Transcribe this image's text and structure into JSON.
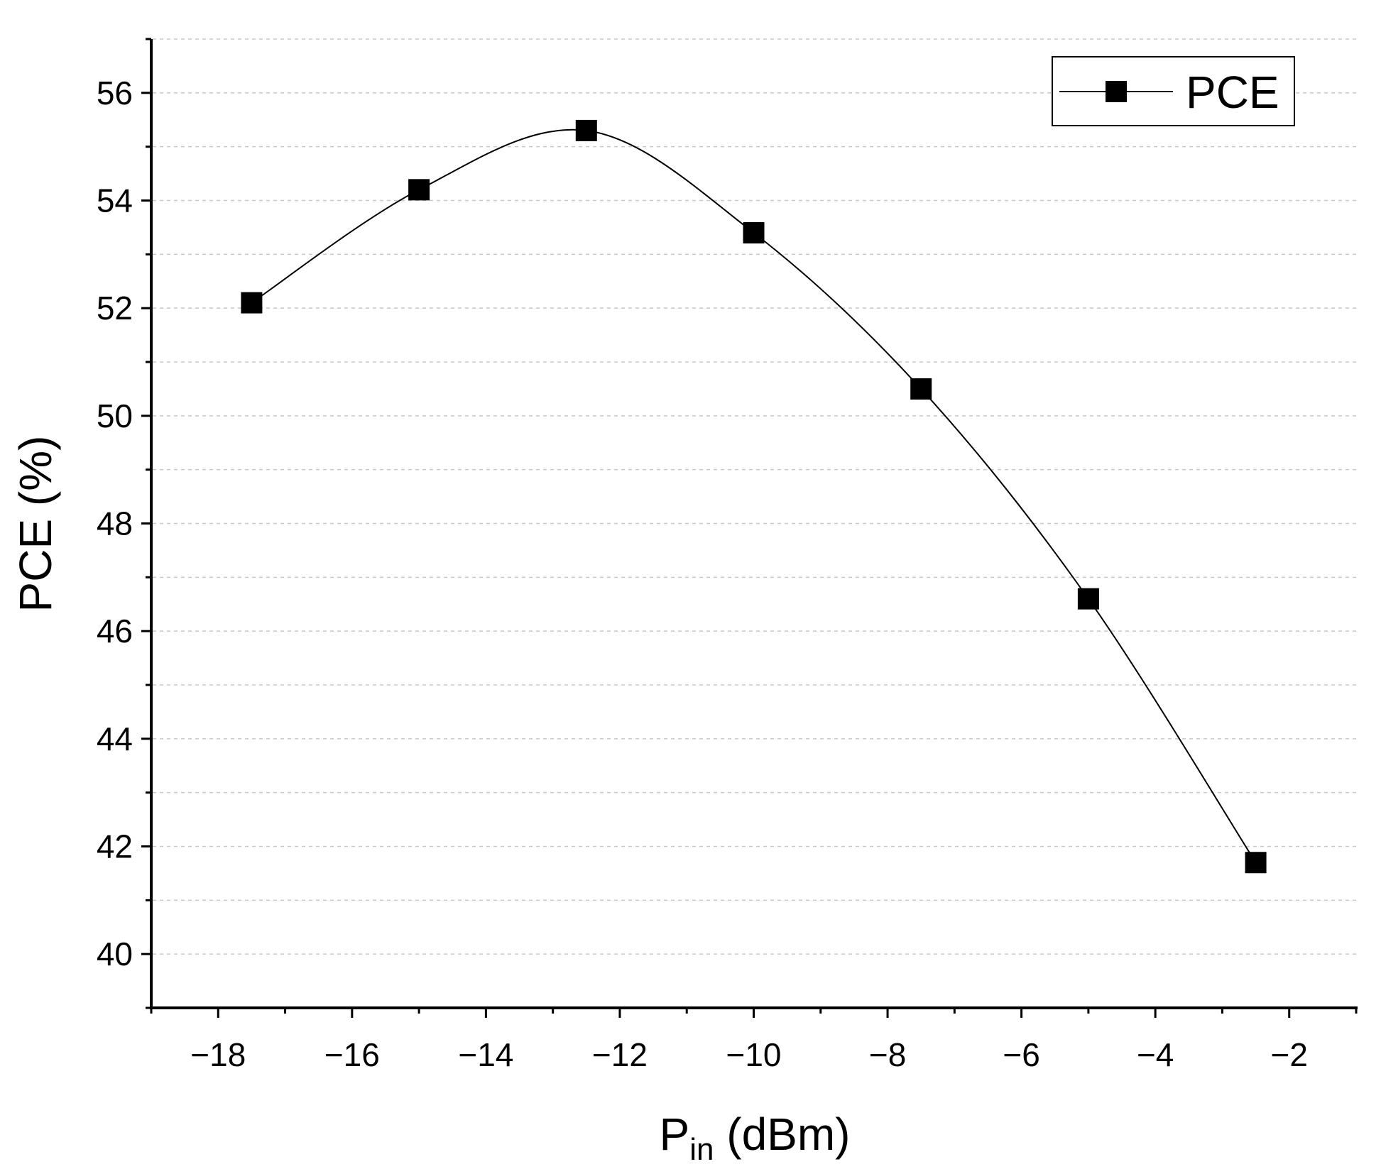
{
  "chart_data": {
    "type": "line",
    "title": "",
    "xlabel": {
      "main": "P",
      "sub": "in",
      "unit": " (dBm)"
    },
    "ylabel": "PCE (%)",
    "xlim": [
      -19,
      -1
    ],
    "ylim": [
      39,
      57
    ],
    "x_major_ticks": [
      -18,
      -16,
      -14,
      -12,
      -10,
      -8,
      -6,
      -4,
      -2
    ],
    "x_tick_labels": [
      "−18",
      "−16",
      "−14",
      "−12",
      "−10",
      "−8",
      "−6",
      "−4",
      "−2"
    ],
    "y_major_ticks": [
      40,
      42,
      44,
      46,
      48,
      50,
      52,
      54,
      56
    ],
    "y_tick_labels": [
      "40",
      "42",
      "44",
      "46",
      "48",
      "50",
      "52",
      "54",
      "56"
    ],
    "grid": "horizontal dashed",
    "legend_position": "top-right",
    "series": [
      {
        "name": "PCE",
        "marker": "square",
        "line": "smooth spline",
        "color": "#000000",
        "x": [
          -17.5,
          -15,
          -12.5,
          -10,
          -7.5,
          -5,
          -2.5
        ],
        "values": [
          52.1,
          54.2,
          55.3,
          53.4,
          50.5,
          46.6,
          41.7
        ]
      }
    ]
  }
}
